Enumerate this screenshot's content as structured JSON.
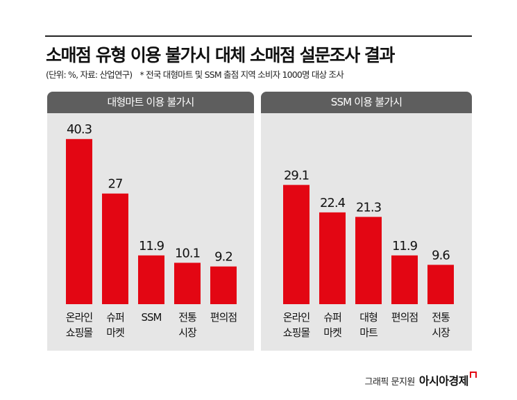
{
  "title": "소매점 유형 이용 불가시 대체 소매점 설문조사 결과",
  "subtitle": {
    "unit": "(단위: %, 자료: 산업연구)",
    "note": "* 전국 대형마트 및 SSM 출점 지역 소비자 1000명 대상 조사"
  },
  "credit": {
    "graphic": "그래픽 문지원",
    "brand": "아시아경제"
  },
  "colors": {
    "bar": "#e30613",
    "header": "#5e5e5e",
    "panel": "#e6e6e6"
  },
  "chart_data": [
    {
      "type": "bar",
      "title": "대형마트 이용 불가시",
      "categories": [
        [
          "온라인",
          "쇼핑몰"
        ],
        [
          "슈퍼",
          "마켓"
        ],
        [
          "SSM"
        ],
        [
          "전통",
          "시장"
        ],
        [
          "편의점"
        ]
      ],
      "values": [
        40.3,
        27,
        11.9,
        10.1,
        9.2
      ],
      "value_labels": [
        "40.3",
        "27",
        "11.9",
        "10.1",
        "9.2"
      ],
      "ylim": [
        0,
        42
      ],
      "grid": false
    },
    {
      "type": "bar",
      "title": "SSM 이용 불가시",
      "categories": [
        [
          "온라인",
          "쇼핑몰"
        ],
        [
          "슈퍼",
          "마켓"
        ],
        [
          "대형",
          "마트"
        ],
        [
          "편의점"
        ],
        [
          "전통",
          "시장"
        ]
      ],
      "values": [
        29.1,
        22.4,
        21.3,
        11.9,
        9.6
      ],
      "value_labels": [
        "29.1",
        "22.4",
        "21.3",
        "11.9",
        "9.6"
      ],
      "ylim": [
        0,
        42
      ],
      "grid": false
    }
  ]
}
